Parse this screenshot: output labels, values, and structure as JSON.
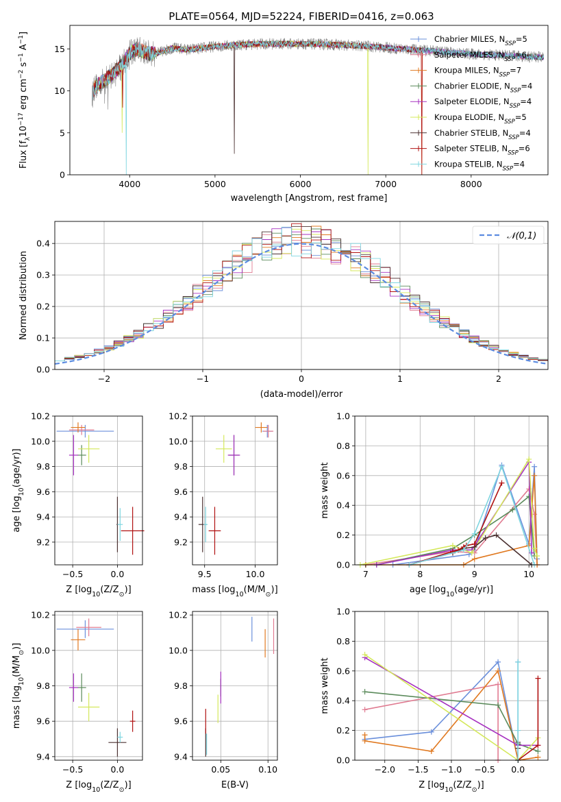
{
  "figure": {
    "title": "PLATE=0564, MJD=52224, FIBERID=0416, z=0.063"
  },
  "colors": {
    "Chabrier MILES": "#6a8fdb",
    "Salpeter MILES": "#e07b91",
    "Kroupa MILES": "#e0781f",
    "Chabrier ELODIE": "#5a8a5a",
    "Salpeter ELODIE": "#a630c0",
    "Kroupa ELODIE": "#d4e85a",
    "Chabrier STELIB": "#4a3030",
    "Salpeter STELIB": "#b01010",
    "Kroupa STELIB": "#7fd6e0",
    "gauss": "#5b8be0",
    "data": "#808080"
  },
  "chart_data": [
    {
      "id": "spectrum",
      "type": "line",
      "xlabel": "wavelength [Angstrom, rest frame]",
      "ylabel": "Flux [fλ10⁻¹⁷ erg cm⁻² s⁻¹ A⁻¹]",
      "xlim": [
        3300,
        8900
      ],
      "ylim": [
        0,
        17.8
      ],
      "xticks": [
        4000,
        5000,
        6000,
        7000,
        8000
      ],
      "yticks": [
        0,
        5,
        10,
        15
      ],
      "legend_position": "upper-right",
      "continuum": {
        "x": [
          3560,
          3600,
          3700,
          3800,
          3900,
          4000,
          4100,
          4200,
          4300,
          4500,
          4700,
          5000,
          5300,
          5600,
          6000,
          6400,
          6800,
          7200,
          7600,
          8000,
          8400,
          8850
        ],
        "y": [
          9.5,
          10.5,
          11.2,
          12.0,
          13.0,
          14.5,
          15.0,
          14.5,
          14.4,
          15.1,
          14.9,
          15.3,
          15.5,
          15.6,
          15.6,
          15.5,
          15.3,
          15.0,
          14.7,
          14.4,
          14.2,
          14.0
        ]
      },
      "series": [
        {
          "name": "Chabrier MILES, N_SSP=5",
          "legend": [
            "Chabrier MILES, N",
            "SSP",
            "=5"
          ]
        },
        {
          "name": "Salpeter MILES, N_SSP=6",
          "legend": [
            "Salpeter MILES, N",
            "SSP",
            "=6"
          ]
        },
        {
          "name": "Kroupa MILES, N_SSP=7",
          "legend": [
            "Kroupa MILES, N",
            "SSP",
            "=7"
          ]
        },
        {
          "name": "Chabrier ELODIE, N_SSP=4",
          "legend": [
            "Chabrier ELODIE, N",
            "SSP",
            "=4"
          ]
        },
        {
          "name": "Salpeter ELODIE, N_SSP=4",
          "legend": [
            "Salpeter ELODIE, N",
            "SSP",
            "=4"
          ]
        },
        {
          "name": "Kroupa ELODIE, N_SSP=5",
          "legend": [
            "Kroupa ELODIE, N",
            "SSP",
            "=5"
          ]
        },
        {
          "name": "Chabrier STELIB, N_SSP=4",
          "legend": [
            "Chabrier STELIB, N",
            "SSP",
            "=4"
          ]
        },
        {
          "name": "Salpeter STELIB, N_SSP=6",
          "legend": [
            "Salpeter STELIB, N",
            "SSP",
            "=6"
          ]
        },
        {
          "name": "Kroupa STELIB, N_SSP=4",
          "legend": [
            "Kroupa STELIB, N",
            "SSP",
            "=4"
          ]
        }
      ]
    },
    {
      "id": "residuals",
      "type": "line",
      "xlabel": "(data-model)/error",
      "ylabel": "Normed distribution",
      "xlim": [
        -2.5,
        2.5
      ],
      "ylim": [
        0,
        0.47
      ],
      "xticks": [
        -2,
        -1,
        0,
        1,
        2
      ],
      "yticks": [
        0.0,
        0.1,
        0.2,
        0.3,
        0.4
      ],
      "grid": true,
      "legend": "𝒩(0,1)",
      "legend_position": "upper-right",
      "bin_width": 0.1,
      "bin_start": -2.5
    },
    {
      "id": "age_vs_Z",
      "type": "scatter",
      "xlabel": "Z [log10(Z/Z⊙)]",
      "ylabel": "age  [log10(age/yr)]",
      "xlim": [
        -0.7,
        0.28
      ],
      "ylim": [
        9.02,
        10.2
      ],
      "xticks": [
        -0.5,
        0.0
      ],
      "yticks": [
        9.2,
        9.4,
        9.6,
        9.8,
        10.0,
        10.2
      ],
      "grid": true,
      "points": [
        {
          "series": "Chabrier MILES",
          "x": -0.36,
          "y": 10.08,
          "xerr": 0.32,
          "yerr": 0.05
        },
        {
          "series": "Salpeter MILES",
          "x": -0.4,
          "y": 10.09,
          "xerr": 0.14,
          "yerr": 0.04
        },
        {
          "series": "Kroupa MILES",
          "x": -0.44,
          "y": 10.11,
          "xerr": 0.08,
          "yerr": 0.04
        },
        {
          "series": "Chabrier ELODIE",
          "x": -0.4,
          "y": 9.89,
          "xerr": 0.05,
          "yerr": 0.08
        },
        {
          "series": "Salpeter ELODIE",
          "x": -0.49,
          "y": 9.89,
          "xerr": 0.05,
          "yerr": 0.16
        },
        {
          "series": "Kroupa ELODIE",
          "x": -0.32,
          "y": 9.94,
          "xerr": 0.12,
          "yerr": 0.11
        },
        {
          "series": "Chabrier STELIB",
          "x": 0.0,
          "y": 9.34,
          "xerr": 0.01,
          "yerr": 0.22
        },
        {
          "series": "Salpeter STELIB",
          "x": 0.17,
          "y": 9.29,
          "xerr": 0.13,
          "yerr": 0.19
        },
        {
          "series": "Kroupa STELIB",
          "x": 0.03,
          "y": 9.34,
          "xerr": 0.03,
          "yerr": 0.13
        }
      ]
    },
    {
      "id": "age_vs_mass",
      "type": "scatter",
      "xlabel": "mass [log10(M/M⊙)]",
      "ylabel": "",
      "xlim": [
        9.38,
        10.22
      ],
      "ylim": [
        9.02,
        10.2
      ],
      "xticks": [
        9.5,
        10.0
      ],
      "yticks": [
        9.2,
        9.4,
        9.6,
        9.8,
        10.0,
        10.2
      ],
      "grid": true,
      "points": [
        {
          "series": "Chabrier MILES",
          "x": 10.12,
          "y": 10.08,
          "xerr": 0.05,
          "yerr": 0.05
        },
        {
          "series": "Salpeter MILES",
          "x": 10.13,
          "y": 10.08,
          "xerr": 0.05,
          "yerr": 0.05
        },
        {
          "series": "Kroupa MILES",
          "x": 10.06,
          "y": 10.11,
          "xerr": 0.06,
          "yerr": 0.04
        },
        {
          "series": "Chabrier ELODIE",
          "x": 9.79,
          "y": 9.89,
          "xerr": 0.05,
          "yerr": 0.16
        },
        {
          "series": "Salpeter ELODIE",
          "x": 9.79,
          "y": 9.89,
          "xerr": 0.06,
          "yerr": 0.16
        },
        {
          "series": "Kroupa ELODIE",
          "x": 9.69,
          "y": 9.94,
          "xerr": 0.08,
          "yerr": 0.11
        },
        {
          "series": "Chabrier STELIB",
          "x": 9.48,
          "y": 9.34,
          "xerr": 0.04,
          "yerr": 0.22
        },
        {
          "series": "Salpeter STELIB",
          "x": 9.6,
          "y": 9.29,
          "xerr": 0.06,
          "yerr": 0.19
        },
        {
          "series": "Kroupa STELIB",
          "x": 9.51,
          "y": 9.34,
          "xerr": 0.02,
          "yerr": 0.14
        }
      ]
    },
    {
      "id": "weight_vs_age",
      "type": "line",
      "xlabel": "age  [log10(age/yr)]",
      "ylabel": "mass weight",
      "xlim": [
        6.8,
        10.35
      ],
      "ylim": [
        0,
        1.0
      ],
      "xticks": [
        7,
        8,
        9,
        10
      ],
      "yticks": [
        0.0,
        0.2,
        0.4,
        0.6,
        0.8,
        1.0
      ],
      "grid": true,
      "series": [
        {
          "name": "Chabrier MILES",
          "x": [
            7.5,
            8.9,
            9.0,
            9.5,
            10.0,
            10.1,
            10.15
          ],
          "y": [
            0.0,
            0.07,
            0.1,
            0.67,
            0.14,
            0.66,
            0.04
          ]
        },
        {
          "name": "Salpeter MILES",
          "x": [
            7.0,
            8.6,
            9.0,
            10.0,
            10.1,
            10.15
          ],
          "y": [
            0.0,
            0.09,
            0.08,
            0.51,
            0.34,
            0.0
          ]
        },
        {
          "name": "Kroupa MILES",
          "x": [
            7.0,
            8.8,
            9.0,
            10.0,
            10.1,
            10.15
          ],
          "y": [
            0.0,
            0.0,
            0.04,
            0.13,
            0.6,
            0.0
          ]
        },
        {
          "name": "Chabrier ELODIE",
          "x": [
            7.2,
            8.6,
            9.0,
            9.7,
            10.0,
            10.1
          ],
          "y": [
            0.0,
            0.11,
            0.2,
            0.37,
            0.46,
            0.06
          ]
        },
        {
          "name": "Salpeter ELODIE",
          "x": [
            7.2,
            8.6,
            8.95,
            10.0,
            10.05
          ],
          "y": [
            0.0,
            0.1,
            0.1,
            0.69,
            0.08
          ]
        },
        {
          "name": "Kroupa ELODIE",
          "x": [
            6.9,
            8.6,
            8.95,
            10.0,
            10.1,
            10.15
          ],
          "y": [
            0.0,
            0.13,
            0.08,
            0.71,
            0.11,
            0.06
          ]
        },
        {
          "name": "Chabrier STELIB",
          "x": [
            7.8,
            8.6,
            8.8,
            9.0,
            9.2,
            9.4,
            10.05
          ],
          "y": [
            0.0,
            0.08,
            0.11,
            0.12,
            0.18,
            0.2,
            0.0
          ]
        },
        {
          "name": "Salpeter STELIB",
          "x": [
            7.8,
            8.6,
            8.7,
            8.8,
            8.85,
            9.0,
            9.5
          ],
          "y": [
            0.0,
            0.09,
            0.1,
            0.12,
            0.13,
            0.14,
            0.55
          ]
        },
        {
          "name": "Kroupa STELIB",
          "x": [
            7.8,
            8.8,
            9.0,
            9.5,
            10.1
          ],
          "y": [
            0.0,
            0.1,
            0.21,
            0.66,
            0.0
          ]
        }
      ]
    },
    {
      "id": "mass_vs_Z",
      "type": "scatter",
      "xlabel": "Z [log10(Z/Z⊙)]",
      "ylabel": "mass [log10(M/M⊙)]",
      "xlim": [
        -0.7,
        0.28
      ],
      "ylim": [
        9.38,
        10.22
      ],
      "xticks": [
        -0.5,
        0.0
      ],
      "yticks": [
        9.4,
        9.6,
        9.8,
        10.0,
        10.2
      ],
      "grid": true,
      "points": [
        {
          "series": "Chabrier MILES",
          "x": -0.36,
          "y": 10.12,
          "xerr": 0.32,
          "yerr": 0.05
        },
        {
          "series": "Salpeter MILES",
          "x": -0.32,
          "y": 10.13,
          "xerr": 0.14,
          "yerr": 0.05
        },
        {
          "series": "Kroupa MILES",
          "x": -0.44,
          "y": 10.06,
          "xerr": 0.08,
          "yerr": 0.06
        },
        {
          "series": "Chabrier ELODIE",
          "x": -0.4,
          "y": 9.79,
          "xerr": 0.05,
          "yerr": 0.08
        },
        {
          "series": "Salpeter ELODIE",
          "x": -0.49,
          "y": 9.79,
          "xerr": 0.05,
          "yerr": 0.08
        },
        {
          "series": "Kroupa ELODIE",
          "x": -0.32,
          "y": 9.68,
          "xerr": 0.12,
          "yerr": 0.08
        },
        {
          "series": "Chabrier STELIB",
          "x": 0.0,
          "y": 9.48,
          "xerr": 0.1,
          "yerr": 0.08
        },
        {
          "series": "Salpeter STELIB",
          "x": 0.17,
          "y": 9.6,
          "xerr": 0.03,
          "yerr": 0.06
        },
        {
          "series": "Kroupa STELIB",
          "x": 0.03,
          "y": 9.51,
          "xerr": 0.03,
          "yerr": 0.03
        }
      ]
    },
    {
      "id": "mass_vs_ebv",
      "type": "scatter",
      "xlabel": "E(B-V)",
      "ylabel": "",
      "xlim": [
        0.02,
        0.11
      ],
      "ylim": [
        9.38,
        10.22
      ],
      "xticks": [
        0.05,
        0.1
      ],
      "yticks": [
        9.4,
        9.6,
        9.8,
        10.0,
        10.2
      ],
      "grid": true,
      "points": [
        {
          "series": "Chabrier MILES",
          "x": 0.083,
          "y": 10.12,
          "yerr": 0.07
        },
        {
          "series": "Salpeter MILES",
          "x": 0.106,
          "y": 10.08,
          "yerr": 0.1
        },
        {
          "series": "Kroupa MILES",
          "x": 0.097,
          "y": 10.04,
          "yerr": 0.08
        },
        {
          "series": "Chabrier ELODIE",
          "x": 0.05,
          "y": 9.79,
          "yerr": 0.05
        },
        {
          "series": "Salpeter ELODIE",
          "x": 0.05,
          "y": 9.79,
          "yerr": 0.09
        },
        {
          "series": "Kroupa ELODIE",
          "x": 0.047,
          "y": 9.67,
          "yerr": 0.08
        },
        {
          "series": "Chabrier STELIB",
          "x": 0.034,
          "y": 9.48,
          "yerr": 0.08
        },
        {
          "series": "Salpeter STELIB",
          "x": 0.034,
          "y": 9.6,
          "yerr": 0.07
        },
        {
          "series": "Kroupa STELIB",
          "x": 0.035,
          "y": 9.47,
          "yerr": 0.06
        }
      ]
    },
    {
      "id": "weight_vs_Z",
      "type": "line",
      "xlabel": "Z [log10(Z/Z⊙)]",
      "ylabel": "mass weight",
      "xlim": [
        -2.45,
        0.45
      ],
      "ylim": [
        0,
        1.0
      ],
      "xticks": [
        -2.0,
        -1.5,
        -1.0,
        -0.5,
        0.0
      ],
      "yticks": [
        0.0,
        0.2,
        0.4,
        0.6,
        0.8,
        1.0
      ],
      "grid": true,
      "series": [
        {
          "name": "Chabrier MILES",
          "x": [
            -2.3,
            -1.3,
            -0.3,
            0.0,
            0.0
          ],
          "y": [
            0.14,
            0.19,
            0.66,
            0.0,
            0.66
          ]
        },
        {
          "name": "Salpeter MILES",
          "x": [
            -2.3,
            -0.3,
            -0.3
          ],
          "y": [
            0.34,
            0.51,
            0.0
          ]
        },
        {
          "name": "Kroupa MILES",
          "x": [
            -2.3,
            -2.3,
            -1.3,
            -0.3,
            0.0,
            0.3
          ],
          "y": [
            0.17,
            0.13,
            0.06,
            0.6,
            0.0,
            0.02
          ]
        },
        {
          "name": "Chabrier ELODIE",
          "x": [
            -2.3,
            -0.3,
            0.0,
            0.3
          ],
          "y": [
            0.46,
            0.37,
            0.11,
            0.06
          ]
        },
        {
          "name": "Salpeter ELODIE",
          "x": [
            -2.3,
            0.0,
            0.3
          ],
          "y": [
            0.69,
            0.1,
            0.1
          ]
        },
        {
          "name": "Kroupa ELODIE",
          "x": [
            -2.3,
            0.0,
            0.3
          ],
          "y": [
            0.71,
            0.0,
            0.15
          ]
        },
        {
          "name": "Chabrier STELIB",
          "x": [
            0.0,
            0.0,
            0.0
          ],
          "y": [
            0.0,
            0.12,
            0.08
          ]
        },
        {
          "name": "Salpeter STELIB",
          "x": [
            0.0,
            0.3,
            0.3
          ],
          "y": [
            0.0,
            0.1,
            0.55
          ]
        },
        {
          "name": "Kroupa STELIB",
          "x": [
            0.0,
            0.0,
            0.0
          ],
          "y": [
            0.0,
            0.2,
            0.66
          ]
        }
      ]
    }
  ]
}
